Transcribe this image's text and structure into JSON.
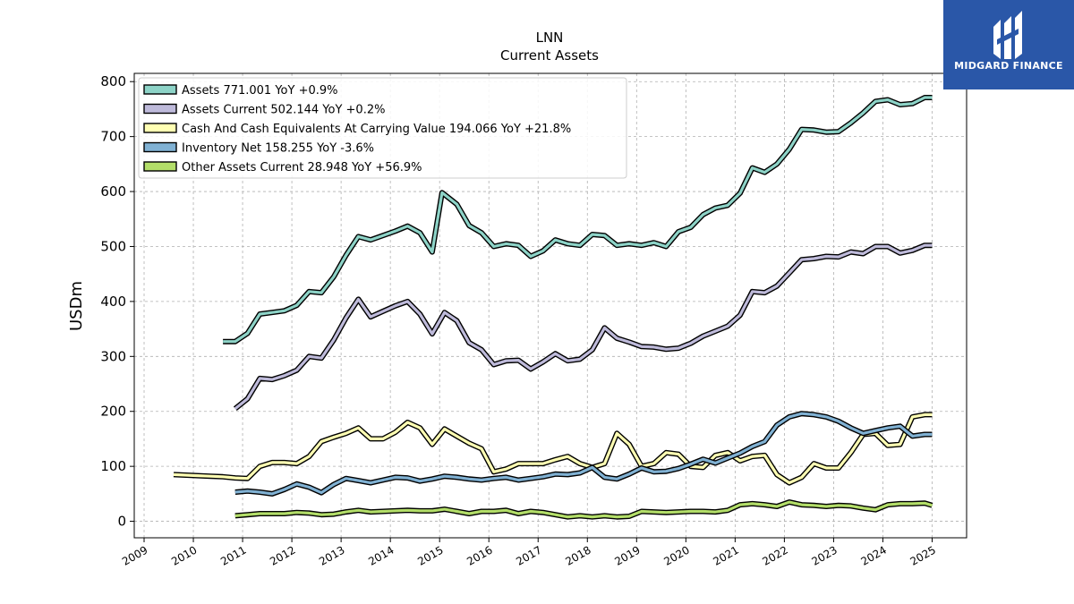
{
  "brand": {
    "name": "MIDGARD FINANCE",
    "color": "#2a57a8"
  },
  "chart_data": {
    "type": "line",
    "title": "LNN",
    "subtitle": "Current  Assets",
    "ylabel": "USDm",
    "xlabel": "",
    "ylim": [
      -30,
      815
    ],
    "xlim": [
      2008.8,
      2025.7
    ],
    "yticks": [
      0,
      100,
      200,
      300,
      400,
      500,
      600,
      700,
      800
    ],
    "xticks": [
      "2009",
      "2010",
      "2011",
      "2012",
      "2013",
      "2014",
      "2015",
      "2016",
      "2017",
      "2018",
      "2019",
      "2020",
      "2021",
      "2022",
      "2023",
      "2024",
      "2025"
    ],
    "grid": true,
    "legend_position": "top-left",
    "series": [
      {
        "name": "Assets",
        "legend": "Assets  771.001 YoY +0.9%",
        "color": "#8dd3c7",
        "x": [
          2010.6,
          2010.85,
          2011.1,
          2011.35,
          2011.6,
          2011.85,
          2012.1,
          2012.35,
          2012.6,
          2012.85,
          2013.1,
          2013.35,
          2013.6,
          2013.85,
          2014.1,
          2014.35,
          2014.6,
          2014.85,
          2015.05,
          2015.35,
          2015.6,
          2015.85,
          2016.1,
          2016.35,
          2016.6,
          2016.85,
          2017.1,
          2017.35,
          2017.6,
          2017.85,
          2018.1,
          2018.35,
          2018.6,
          2018.85,
          2019.1,
          2019.35,
          2019.6,
          2019.85,
          2020.1,
          2020.35,
          2020.6,
          2020.85,
          2021.1,
          2021.35,
          2021.6,
          2021.85,
          2022.1,
          2022.35,
          2022.6,
          2022.85,
          2023.1,
          2023.35,
          2023.6,
          2023.85,
          2024.1,
          2024.35,
          2024.6,
          2024.85,
          2025.0
        ],
        "values": [
          327,
          327,
          342,
          377,
          380,
          383,
          393,
          418,
          416,
          445,
          484,
          518,
          512,
          520,
          528,
          537,
          525,
          490,
          598,
          577,
          538,
          525,
          500,
          505,
          502,
          482,
          492,
          512,
          505,
          502,
          522,
          520,
          502,
          505,
          502,
          507,
          500,
          527,
          535,
          558,
          570,
          575,
          597,
          643,
          635,
          650,
          677,
          713,
          712,
          708,
          709,
          725,
          743,
          764,
          767,
          758,
          760,
          771,
          771
        ]
      },
      {
        "name": "Assets Current",
        "legend": "Assets Current  502.144 YoY +0.2%",
        "color": "#bebada",
        "x": [
          2010.85,
          2011.1,
          2011.35,
          2011.6,
          2011.85,
          2012.1,
          2012.35,
          2012.6,
          2012.85,
          2013.1,
          2013.35,
          2013.6,
          2013.85,
          2014.1,
          2014.35,
          2014.6,
          2014.85,
          2015.1,
          2015.35,
          2015.6,
          2015.85,
          2016.1,
          2016.35,
          2016.6,
          2016.85,
          2017.1,
          2017.35,
          2017.6,
          2017.85,
          2018.1,
          2018.35,
          2018.6,
          2018.85,
          2019.1,
          2019.35,
          2019.6,
          2019.85,
          2020.1,
          2020.35,
          2020.6,
          2020.85,
          2021.1,
          2021.35,
          2021.6,
          2021.85,
          2022.1,
          2022.35,
          2022.6,
          2022.85,
          2023.1,
          2023.35,
          2023.6,
          2023.85,
          2024.1,
          2024.35,
          2024.6,
          2024.85,
          2025.0
        ],
        "values": [
          205,
          223,
          260,
          258,
          265,
          275,
          300,
          297,
          330,
          370,
          404,
          372,
          382,
          392,
          400,
          377,
          341,
          380,
          365,
          325,
          312,
          285,
          292,
          293,
          277,
          290,
          305,
          292,
          295,
          312,
          352,
          333,
          326,
          318,
          317,
          313,
          315,
          324,
          337,
          346,
          355,
          375,
          418,
          416,
          428,
          452,
          476,
          478,
          482,
          481,
          490,
          487,
          500,
          500,
          488,
          493,
          502,
          502
        ]
      },
      {
        "name": "Cash And Cash Equivalents At Carrying Value",
        "legend": "Cash And Cash Equivalents At Carrying Value  194.066 YoY +21.8%",
        "color": "#ffffb3",
        "x": [
          2009.6,
          2009.85,
          2010.1,
          2010.35,
          2010.6,
          2010.85,
          2011.1,
          2011.35,
          2011.6,
          2011.85,
          2012.1,
          2012.35,
          2012.6,
          2012.85,
          2013.1,
          2013.35,
          2013.6,
          2013.85,
          2014.1,
          2014.35,
          2014.6,
          2014.85,
          2015.1,
          2015.35,
          2015.6,
          2015.85,
          2016.1,
          2016.35,
          2016.6,
          2016.85,
          2017.1,
          2017.35,
          2017.6,
          2017.85,
          2018.1,
          2018.35,
          2018.6,
          2018.85,
          2019.1,
          2019.35,
          2019.6,
          2019.85,
          2020.1,
          2020.35,
          2020.6,
          2020.85,
          2021.1,
          2021.35,
          2021.6,
          2021.85,
          2022.1,
          2022.35,
          2022.6,
          2022.85,
          2023.1,
          2023.35,
          2023.6,
          2023.85,
          2024.1,
          2024.35,
          2024.6,
          2024.85,
          2025.0
        ],
        "values": [
          85,
          84,
          83,
          82,
          81,
          79,
          78,
          100,
          107,
          107,
          105,
          118,
          145,
          153,
          160,
          170,
          150,
          150,
          162,
          180,
          170,
          140,
          168,
          155,
          142,
          132,
          90,
          95,
          105,
          105,
          105,
          112,
          118,
          105,
          98,
          105,
          160,
          140,
          100,
          105,
          125,
          122,
          100,
          98,
          120,
          125,
          110,
          118,
          120,
          85,
          70,
          80,
          105,
          97,
          97,
          125,
          158,
          160,
          138,
          140,
          190,
          194,
          194
        ]
      },
      {
        "name": "Inventory Net",
        "legend": "Inventory Net  158.255 YoY -3.6%",
        "color": "#80b1d3",
        "x": [
          2010.85,
          2011.1,
          2011.35,
          2011.6,
          2011.85,
          2012.1,
          2012.35,
          2012.6,
          2012.85,
          2013.1,
          2013.35,
          2013.6,
          2013.85,
          2014.1,
          2014.35,
          2014.6,
          2014.85,
          2015.1,
          2015.35,
          2015.6,
          2015.85,
          2016.1,
          2016.35,
          2016.6,
          2016.85,
          2017.1,
          2017.35,
          2017.6,
          2017.85,
          2018.1,
          2018.35,
          2018.6,
          2018.85,
          2019.1,
          2019.35,
          2019.6,
          2019.85,
          2020.1,
          2020.35,
          2020.6,
          2020.85,
          2021.1,
          2021.35,
          2021.6,
          2021.85,
          2022.1,
          2022.35,
          2022.6,
          2022.85,
          2023.1,
          2023.35,
          2023.6,
          2023.85,
          2024.1,
          2024.35,
          2024.6,
          2024.85,
          2025.0
        ],
        "values": [
          53,
          55,
          53,
          50,
          58,
          68,
          62,
          52,
          67,
          78,
          74,
          70,
          75,
          80,
          79,
          73,
          77,
          82,
          80,
          77,
          75,
          78,
          80,
          75,
          78,
          81,
          86,
          85,
          88,
          98,
          80,
          77,
          86,
          97,
          90,
          91,
          96,
          104,
          113,
          106,
          115,
          124,
          136,
          145,
          175,
          190,
          196,
          194,
          190,
          182,
          170,
          160,
          165,
          170,
          173,
          155,
          158,
          158
        ]
      },
      {
        "name": "Other Assets Current",
        "legend": "Other Assets Current  28.948 YoY +56.9%",
        "color": "#b3de69",
        "x": [
          2010.85,
          2011.1,
          2011.35,
          2011.6,
          2011.85,
          2012.1,
          2012.35,
          2012.6,
          2012.85,
          2013.1,
          2013.35,
          2013.6,
          2013.85,
          2014.1,
          2014.35,
          2014.6,
          2014.85,
          2015.1,
          2015.35,
          2015.6,
          2015.85,
          2016.1,
          2016.35,
          2016.6,
          2016.85,
          2017.1,
          2017.35,
          2017.6,
          2017.85,
          2018.1,
          2018.35,
          2018.6,
          2018.85,
          2019.1,
          2019.35,
          2019.6,
          2019.85,
          2020.1,
          2020.35,
          2020.6,
          2020.85,
          2021.1,
          2021.35,
          2021.6,
          2021.85,
          2022.1,
          2022.35,
          2022.6,
          2022.85,
          2023.1,
          2023.35,
          2023.6,
          2023.85,
          2024.1,
          2024.35,
          2024.6,
          2024.85,
          2025.0
        ],
        "values": [
          10,
          12,
          14,
          14,
          14,
          16,
          15,
          12,
          13,
          17,
          20,
          17,
          18,
          19,
          20,
          19,
          19,
          22,
          18,
          14,
          18,
          18,
          20,
          14,
          18,
          16,
          12,
          8,
          10,
          8,
          10,
          8,
          9,
          18,
          17,
          16,
          17,
          18,
          18,
          17,
          20,
          30,
          32,
          30,
          27,
          35,
          30,
          29,
          27,
          29,
          28,
          24,
          21,
          30,
          32,
          32,
          33,
          29
        ]
      }
    ]
  }
}
